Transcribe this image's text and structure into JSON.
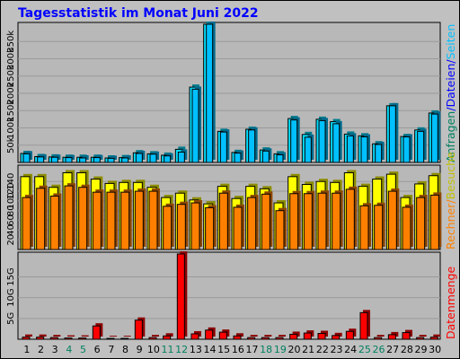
{
  "title": "Tagesstatistik im Monat Juni 2022",
  "colors": {
    "background": "#c0c0c0",
    "plot": "#b8b8b8",
    "title": "#0000ff",
    "anfragen": "#00e0ff",
    "anfragen_label": "#008060",
    "dateien": "#00c0ff",
    "dateien_label": "#0000ff",
    "seiten": "#00e0ff",
    "seiten_label": "#00c0ff",
    "besuche": "#ffff00",
    "besuche_label": "#c0c000",
    "rechner": "#ff8000",
    "rechner_label": "#ff8000",
    "datenmenge": "#ff0000",
    "datenmenge_label": "#ff0000",
    "weekend_tick": "#008060",
    "weekday_tick": "#000000"
  },
  "side_labels": {
    "top": [
      {
        "text": "Anfragen",
        "color_key": "anfragen_label"
      },
      {
        "text": "/",
        "color_key": "dateien_label"
      },
      {
        "text": "Dateien",
        "color_key": "dateien_label"
      },
      {
        "text": "/",
        "color_key": "dateien_label"
      },
      {
        "text": "Seiten",
        "color_key": "seiten_label"
      }
    ],
    "middle": [
      {
        "text": "Rechner",
        "color_key": "rechner_label"
      },
      {
        "text": "/",
        "color_key": "rechner_label"
      },
      {
        "text": "Besuche",
        "color_key": "besuche_label"
      }
    ],
    "bottom": [
      {
        "text": "Datenmenge",
        "color_key": "datenmenge_label"
      }
    ]
  },
  "chart_data": [
    {
      "type": "bar",
      "title": "Tagesstatistik im Monat Juni 2022",
      "categories": [
        "1",
        "2",
        "3",
        "4",
        "5",
        "6",
        "7",
        "8",
        "9",
        "10",
        "11",
        "12",
        "13",
        "14",
        "15",
        "16",
        "17",
        "18",
        "19",
        "20",
        "21",
        "22",
        "23",
        "24",
        "25",
        "26",
        "27",
        "28",
        "29",
        "30"
      ],
      "weekend_days": [
        4,
        5,
        11,
        12,
        18,
        19,
        25,
        26
      ],
      "yticks": [
        "50k",
        "100k",
        "150k",
        "200k",
        "250k",
        "300k",
        "350k"
      ],
      "ytick_values": [
        50000,
        100000,
        150000,
        200000,
        250000,
        300000,
        350000
      ],
      "ylim": [
        0,
        400000
      ],
      "series": [
        {
          "name": "Anfragen",
          "values": [
            26000,
            17000,
            16000,
            15000,
            15000,
            15000,
            13000,
            14000,
            28000,
            25000,
            21000,
            38000,
            218000,
            400000,
            90000,
            29000,
            96000,
            36000,
            25000,
            127000,
            81000,
            125000,
            118000,
            82000,
            77000,
            54000,
            164000,
            75000,
            94000,
            143000
          ]
        },
        {
          "name": "Dateien",
          "values": [
            25000,
            16000,
            15000,
            14000,
            13000,
            14000,
            12000,
            13000,
            26000,
            24000,
            19000,
            30000,
            212000,
            400000,
            88000,
            27000,
            94000,
            33000,
            22000,
            123000,
            73000,
            121000,
            112000,
            77000,
            74000,
            52000,
            164000,
            74000,
            90000,
            140000
          ]
        },
        {
          "name": "Seiten",
          "values": [
            0,
            0,
            0,
            0,
            0,
            0,
            0,
            0,
            0,
            0,
            0,
            0,
            0,
            0,
            0,
            0,
            0,
            0,
            0,
            0,
            0,
            0,
            0,
            0,
            0,
            0,
            0,
            0,
            0,
            0
          ]
        }
      ]
    },
    {
      "type": "bar",
      "categories": [
        "1",
        "2",
        "3",
        "4",
        "5",
        "6",
        "7",
        "8",
        "9",
        "10",
        "11",
        "12",
        "13",
        "14",
        "15",
        "16",
        "17",
        "18",
        "19",
        "20",
        "21",
        "22",
        "23",
        "24",
        "25",
        "26",
        "27",
        "28",
        "29",
        "30"
      ],
      "yticks": [
        "20",
        "40",
        "60",
        "80",
        "100",
        "120",
        "140"
      ],
      "ytick_values": [
        20,
        40,
        60,
        80,
        100,
        120,
        140
      ],
      "ylim": [
        0,
        170
      ],
      "series": [
        {
          "name": "Besuche",
          "values": [
            150,
            150,
            128,
            158,
            158,
            145,
            136,
            138,
            138,
            128,
            107,
            116,
            102,
            94,
            130,
            105,
            130,
            125,
            96,
            150,
            134,
            140,
            138,
            158,
            130,
            145,
            155,
            107,
            135,
            152
          ]
        },
        {
          "name": "Rechner",
          "values": [
            107,
            126,
            110,
            131,
            128,
            118,
            118,
            118,
            120,
            120,
            89,
            93,
            96,
            86,
            116,
            87,
            107,
            114,
            80,
            115,
            115,
            116,
            116,
            124,
            90,
            91,
            120,
            87,
            107,
            112
          ]
        }
      ]
    },
    {
      "type": "bar",
      "categories": [
        "1",
        "2",
        "3",
        "4",
        "5",
        "6",
        "7",
        "8",
        "9",
        "10",
        "11",
        "12",
        "13",
        "14",
        "15",
        "16",
        "17",
        "18",
        "19",
        "20",
        "21",
        "22",
        "23",
        "24",
        "25",
        "26",
        "27",
        "28",
        "29",
        "30"
      ],
      "yticks": [
        "5G",
        "10G",
        "15G"
      ],
      "ytick_values": [
        5,
        10,
        15
      ],
      "ylim": [
        0,
        20.5
      ],
      "series": [
        {
          "name": "Datenmenge",
          "values": [
            0.5,
            0.5,
            0.4,
            0.3,
            0.3,
            3.2,
            0.2,
            0.2,
            4.6,
            0.4,
            0.8,
            20.5,
            1.3,
            2.2,
            1.7,
            0.8,
            0.4,
            0.4,
            0.4,
            1.2,
            1.5,
            1.4,
            0.9,
            1.9,
            6.4,
            0.4,
            1.1,
            1.6,
            0.4,
            0.5
          ]
        }
      ]
    }
  ]
}
